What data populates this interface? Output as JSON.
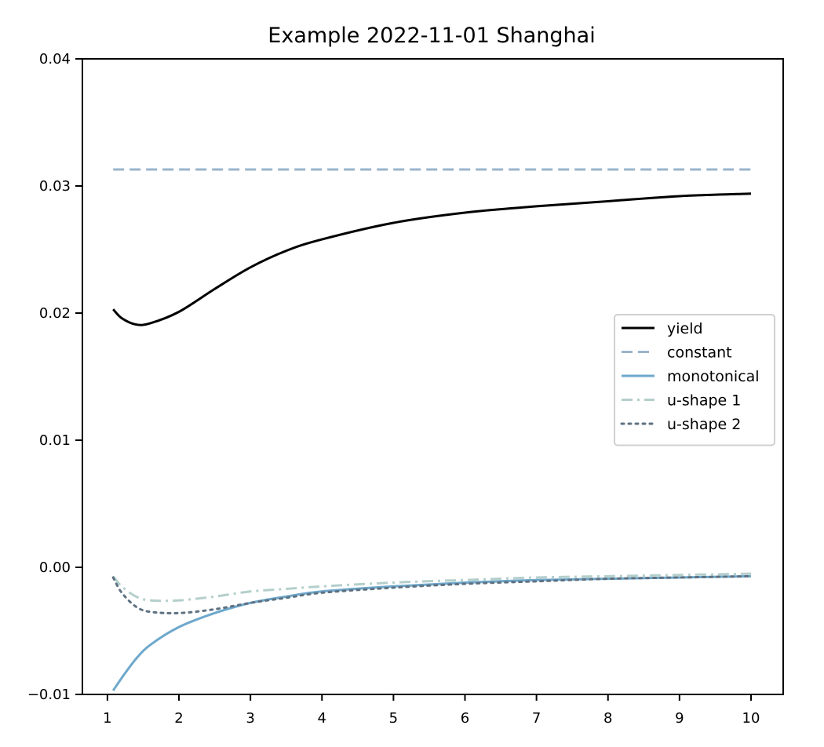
{
  "chart_data": {
    "type": "line",
    "title": "Example 2022-11-01 Shanghai",
    "xlabel": "",
    "ylabel": "",
    "xlim": [
      0.65,
      10.45
    ],
    "ylim": [
      -0.01,
      0.04
    ],
    "x_ticks": [
      1,
      2,
      3,
      4,
      5,
      6,
      7,
      8,
      9,
      10
    ],
    "x_tick_labels": [
      "1",
      "2",
      "3",
      "4",
      "5",
      "6",
      "7",
      "8",
      "9",
      "10"
    ],
    "y_ticks": [
      -0.01,
      0.0,
      0.01,
      0.02,
      0.03,
      0.04
    ],
    "y_tick_labels": [
      "−0.01",
      "0.00",
      "0.01",
      "0.02",
      "0.03",
      "0.04"
    ],
    "grid": false,
    "legend_position": "center-right",
    "x": [
      1.08,
      1.2,
      1.4,
      1.6,
      2.0,
      2.5,
      3.0,
      3.5,
      4.0,
      5.0,
      6.0,
      7.0,
      8.0,
      9.0,
      10.0
    ],
    "series": [
      {
        "name": "yield",
        "color": "#000000",
        "style": "solid",
        "values": [
          0.0203,
          0.0196,
          0.0191,
          0.0192,
          0.0201,
          0.0219,
          0.0236,
          0.0249,
          0.0258,
          0.0271,
          0.0279,
          0.0284,
          0.0288,
          0.0292,
          0.0294
        ]
      },
      {
        "name": "constant",
        "color": "#9ab4cc",
        "style": "dashed",
        "values": [
          0.0313,
          0.0313,
          0.0313,
          0.0313,
          0.0313,
          0.0313,
          0.0313,
          0.0313,
          0.0313,
          0.0313,
          0.0313,
          0.0313,
          0.0313,
          0.0313,
          0.0313
        ]
      },
      {
        "name": "monotonical",
        "color": "#6ea8cc",
        "style": "solid",
        "values": [
          -0.0097,
          -0.0087,
          -0.0072,
          -0.0061,
          -0.0047,
          -0.0036,
          -0.0028,
          -0.0023,
          -0.0019,
          -0.0015,
          -0.0012,
          -0.001,
          -0.0009,
          -0.0008,
          -0.0007
        ]
      },
      {
        "name": "u-shape 1",
        "color": "#b4cfcc",
        "style": "dashdot",
        "values": [
          -0.0007,
          -0.0015,
          -0.0023,
          -0.0026,
          -0.0026,
          -0.0023,
          -0.0019,
          -0.0017,
          -0.0015,
          -0.0012,
          -0.001,
          -0.0008,
          -0.0007,
          -0.0006,
          -0.0005
        ]
      },
      {
        "name": "u-shape 2",
        "color": "#5f7282",
        "style": "dotted",
        "values": [
          -0.0008,
          -0.002,
          -0.0031,
          -0.0035,
          -0.0036,
          -0.0033,
          -0.0028,
          -0.0024,
          -0.002,
          -0.0016,
          -0.0013,
          -0.0011,
          -0.0009,
          -0.0008,
          -0.0007
        ]
      }
    ]
  }
}
